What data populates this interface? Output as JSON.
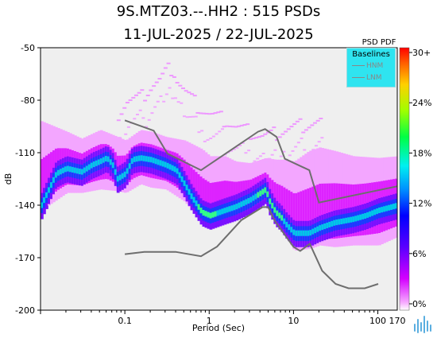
{
  "title_line1": "9S.MTZ03.--.HH2 : 515 PSDs",
  "title_line2": "11-JUL-2025 / 22-JUL-2025",
  "colorbar": {
    "title": "PSD PDF",
    "ticks": [
      "30+",
      "24%",
      "18%",
      "12%",
      "6%",
      "0%"
    ]
  },
  "legend": {
    "title": "Baselines",
    "items": [
      {
        "label": "HNM",
        "color": "#888888"
      },
      {
        "label": "LNM",
        "color": "#888888"
      }
    ]
  },
  "chart_data": {
    "type": "heatmap",
    "title": "9S.MTZ03.--.HH2 : 515 PSDs",
    "subtitle": "11-JUL-2025 / 22-JUL-2025",
    "xlabel": "Period (Sec)",
    "ylabel": "dB",
    "x_scale": "log",
    "xlim": [
      0.01,
      170
    ],
    "ylim": [
      -200,
      -50
    ],
    "x_ticks": [
      {
        "value": 0.1,
        "label": "0.1"
      },
      {
        "value": 1,
        "label": "1"
      },
      {
        "value": 10,
        "label": "10"
      },
      {
        "value": 100,
        "label": "100"
      },
      {
        "value": 170,
        "label": "170"
      }
    ],
    "y_ticks": [
      {
        "value": -50,
        "label": "-50"
      },
      {
        "value": -80,
        "label": "-80"
      },
      {
        "value": -110,
        "label": "-110"
      },
      {
        "value": -140,
        "label": "-140"
      },
      {
        "value": -170,
        "label": "-170"
      },
      {
        "value": -200,
        "label": "-200"
      }
    ],
    "colorbar_range_percent": [
      0,
      30
    ],
    "mode_curve": {
      "period": [
        0.01,
        0.015,
        0.02,
        0.03,
        0.04,
        0.05,
        0.06,
        0.07,
        0.08,
        0.1,
        0.12,
        0.15,
        0.2,
        0.3,
        0.4,
        0.5,
        0.6,
        0.8,
        1.0,
        1.5,
        2.0,
        3.0,
        4.0,
        4.6,
        5.0,
        6.0,
        7.0,
        8.0,
        10.0,
        15.0,
        20.0,
        30.0,
        50.0,
        70.0,
        100.0,
        170.0
      ],
      "db": [
        -140,
        -122,
        -119,
        -121,
        -117,
        -115,
        -113,
        -117,
        -125,
        -122,
        -114,
        -113,
        -114,
        -117,
        -120,
        -128,
        -135,
        -144,
        -146,
        -143,
        -141,
        -137,
        -133,
        -131,
        -137,
        -144,
        -147,
        -151,
        -156,
        -156,
        -153,
        -150,
        -148,
        -146,
        -143,
        -140
      ]
    },
    "noise_band": {
      "period": [
        0.01,
        0.02,
        0.03,
        0.05,
        0.08,
        0.1,
        0.15,
        0.2,
        0.3,
        0.5,
        0.8,
        1.0,
        1.5,
        2.0,
        3.0,
        4.6,
        6.0,
        8.0,
        10.0,
        15.0,
        20.0,
        30.0,
        50.0,
        100.0,
        170.0
      ],
      "upper_db": [
        -92,
        -98,
        -102,
        -97,
        -101,
        -103,
        -97,
        -98,
        -101,
        -103,
        -108,
        -112,
        -112,
        -115,
        -116,
        -113,
        -114,
        -114,
        -115,
        -109,
        -107,
        -109,
        -112,
        -113,
        -112
      ],
      "lower_db": [
        -143,
        -133,
        -133,
        -131,
        -132,
        -133,
        -128,
        -130,
        -131,
        -138,
        -150,
        -154,
        -151,
        -148,
        -143,
        -137,
        -149,
        -158,
        -166,
        -165,
        -163,
        -164,
        -163,
        -163,
        -158
      ]
    },
    "outlier_track": {
      "period": [
        0.08,
        0.1,
        0.15,
        0.2,
        0.25,
        0.3,
        0.35,
        0.4,
        0.5,
        0.7,
        1.0,
        1.5,
        2.0,
        3.0,
        4.0,
        5.0,
        7.0,
        10.0,
        15.0,
        20.0
      ],
      "db": [
        -87,
        -80,
        -78,
        -71,
        -68,
        -63,
        -61,
        -68,
        -75,
        -83,
        -88,
        -91,
        -95,
        -98,
        -100,
        -100,
        -97,
        -95,
        -93,
        -92
      ]
    },
    "series": [
      {
        "name": "HNM",
        "x": [
          0.1,
          0.22,
          0.32,
          0.8,
          3.8,
          4.6,
          6.3,
          7.9,
          15.4,
          20,
          354.8
        ],
        "y": [
          -91.5,
          -97.4,
          -110.5,
          -120,
          -98,
          -96.5,
          -101,
          -113.5,
          -120,
          -138.5,
          -126
        ]
      },
      {
        "name": "LNM",
        "x": [
          0.1,
          0.17,
          0.4,
          0.8,
          1.24,
          2.4,
          4.3,
          5,
          6,
          10,
          12,
          15.6,
          21.9,
          31.6,
          45,
          70,
          101
        ],
        "y": [
          -168,
          -166.7,
          -166.7,
          -169.2,
          -163.7,
          -148.6,
          -141.1,
          -141.1,
          -149,
          -163.8,
          -166.2,
          -162.1,
          -177.5,
          -185,
          -187.5,
          -187.5,
          -185
        ]
      }
    ]
  }
}
